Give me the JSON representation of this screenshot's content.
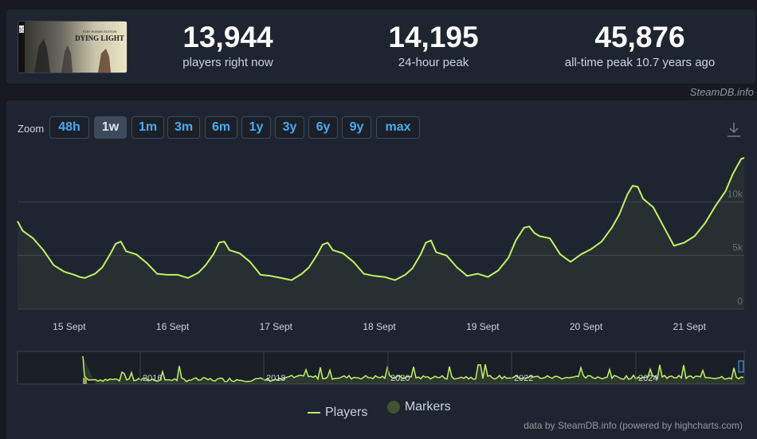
{
  "game": {
    "thumb_top_text": "STAY HUMAN EDITION",
    "thumb_title": "DYING LIGHT",
    "thumb_badge": "10"
  },
  "stats": [
    {
      "value": "13,944",
      "label": "players right now"
    },
    {
      "value": "14,195",
      "label": "24-hour peak"
    },
    {
      "value": "45,876",
      "label": "all-time peak 10.7 years ago"
    }
  ],
  "credit_top": "SteamDB.info",
  "zoom": {
    "label": "Zoom",
    "active": "1w",
    "options": [
      "48h",
      "1w",
      "1m",
      "3m",
      "6m",
      "1y",
      "3y",
      "6y",
      "9y",
      "max"
    ]
  },
  "legend": {
    "players": "Players",
    "markers": "Markers"
  },
  "credit_bottom": "data by SteamDB.info (powered by highcharts.com)",
  "colors": {
    "series": "#bef264",
    "marker": "#415330",
    "button_text": "#49a9f2",
    "background": "#1f2530"
  },
  "chart_data": {
    "type": "line",
    "series": [
      {
        "name": "Players",
        "x": [
          14.5,
          14.55,
          14.65,
          14.75,
          14.85,
          14.95,
          15.05,
          15.1,
          15.15,
          15.25,
          15.32,
          15.4,
          15.45,
          15.5,
          15.55,
          15.65,
          15.75,
          15.85,
          15.95,
          16.05,
          16.15,
          16.25,
          16.32,
          16.4,
          16.45,
          16.5,
          16.55,
          16.65,
          16.75,
          16.85,
          16.95,
          17.05,
          17.15,
          17.25,
          17.32,
          17.4,
          17.45,
          17.5,
          17.55,
          17.65,
          17.75,
          17.85,
          17.95,
          18.05,
          18.15,
          18.25,
          18.32,
          18.4,
          18.45,
          18.5,
          18.55,
          18.65,
          18.75,
          18.85,
          18.95,
          19.05,
          19.15,
          19.25,
          19.32,
          19.4,
          19.45,
          19.5,
          19.55,
          19.65,
          19.75,
          19.85,
          19.95,
          20.05,
          20.15,
          20.25,
          20.32,
          20.4,
          20.45,
          20.5,
          20.55,
          20.65,
          20.75,
          20.85,
          20.95,
          21.05,
          21.15,
          21.25,
          21.35,
          21.42,
          21.5,
          21.53
        ],
        "values": [
          8200,
          7300,
          6600,
          5500,
          4100,
          3500,
          3200,
          3000,
          2900,
          3300,
          3900,
          5200,
          6100,
          6300,
          5400,
          5100,
          4300,
          3300,
          3200,
          3200,
          2900,
          3400,
          4100,
          5200,
          6200,
          6300,
          5500,
          5200,
          4400,
          3200,
          3100,
          2900,
          2700,
          3300,
          3900,
          5100,
          6000,
          6200,
          5500,
          5200,
          4400,
          3300,
          3100,
          3000,
          2700,
          3200,
          3800,
          5100,
          6200,
          6400,
          5300,
          5000,
          3900,
          3100,
          3300,
          3000,
          3600,
          4800,
          6400,
          7600,
          7700,
          7100,
          6800,
          6600,
          5100,
          4400,
          5100,
          5600,
          6300,
          7600,
          8800,
          10700,
          11500,
          11400,
          10300,
          9500,
          7700,
          5900,
          6200,
          6800,
          8000,
          9600,
          11000,
          12600,
          14000,
          14100
        ]
      }
    ],
    "x_ticks": [
      "15 Sept",
      "16 Sept",
      "17 Sept",
      "18 Sept",
      "19 Sept",
      "20 Sept",
      "21 Sept"
    ],
    "y_ticks": [
      "0",
      "5k",
      "10k"
    ],
    "ylim": [
      0,
      15000
    ],
    "grid": true,
    "navigator": {
      "year_labels": [
        "2016",
        "2018",
        "2020",
        "2022",
        "2024"
      ]
    }
  }
}
